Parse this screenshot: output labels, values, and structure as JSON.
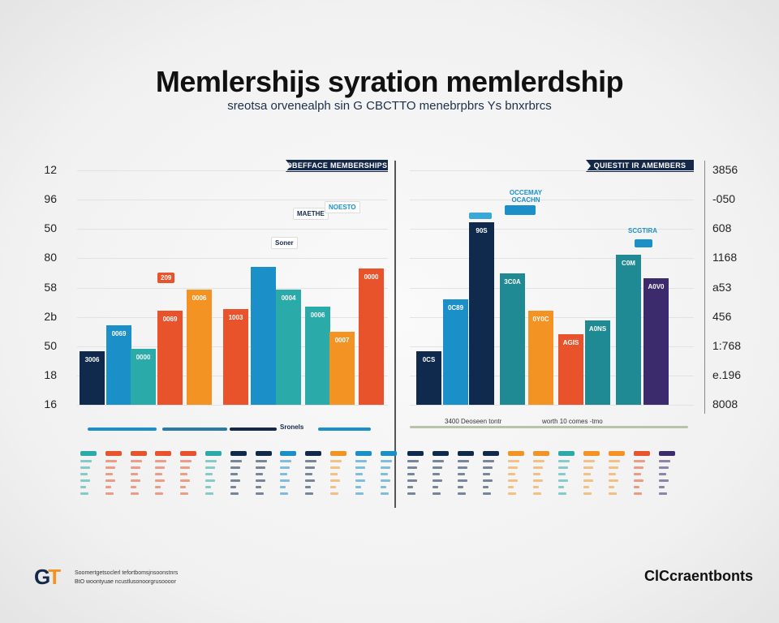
{
  "header": {
    "title": "Memlershijs syration memlerdship",
    "subtitle": "sreotsa orvenealph sin G CBCTTO menebrpbrs Ys bnxrbrcs"
  },
  "colors": {
    "navy": "#0f2a4c",
    "blue": "#1b8fc8",
    "teal": "#2aaaa8",
    "red": "#e8532b",
    "orange": "#f39324",
    "darkteal": "#1f8a93",
    "purple": "#3b2a6c"
  },
  "chart_data": [
    {
      "type": "bar",
      "title": "OBEFFACE MEMBERSHIPS",
      "ylim": [
        0,
        100
      ],
      "yticks": [
        "12",
        "96",
        "50",
        "80",
        "58",
        "2b",
        "50",
        "18",
        "16"
      ],
      "bars": [
        {
          "value": 23,
          "label": "3006",
          "color": "navy"
        },
        {
          "value": 34,
          "label": "0069",
          "color": "blue"
        },
        {
          "value": 24,
          "label": "0000",
          "color": "teal"
        },
        {
          "value": 40,
          "label": "0069",
          "color": "red"
        },
        {
          "value": 49,
          "label": "0006",
          "color": "orange"
        },
        {
          "value": 41,
          "label": "1003",
          "color": "red"
        },
        {
          "value": 59,
          "label": "",
          "color": "blue"
        },
        {
          "value": 49,
          "label": "0004",
          "color": "teal"
        },
        {
          "value": 42,
          "label": "0006",
          "color": "teal"
        },
        {
          "value": 31,
          "label": "0007",
          "color": "orange"
        },
        {
          "value": 58,
          "label": "0000",
          "color": "red"
        }
      ],
      "callouts": [
        "209",
        "Soner",
        "MAETHE",
        "NOESTO"
      ],
      "legend_line_label": "Sronels"
    },
    {
      "type": "bar",
      "title": "QUIESTIT IR AMEMBERS",
      "ylim": [
        0,
        100
      ],
      "yticks": [
        "3856",
        "-050",
        "608",
        "1168",
        "a53",
        "456",
        "1:768",
        "e.196",
        "8008"
      ],
      "bars": [
        {
          "value": 23,
          "label": "0CS",
          "color": "navy"
        },
        {
          "value": 45,
          "label": "0C89",
          "color": "blue"
        },
        {
          "value": 78,
          "label": "90S",
          "color": "navy"
        },
        {
          "value": 56,
          "label": "3C0A",
          "color": "darkteal"
        },
        {
          "value": 40,
          "label": "0Y0C",
          "color": "orange"
        },
        {
          "value": 30,
          "label": "AGIS",
          "color": "red"
        },
        {
          "value": 36,
          "label": "A0NS",
          "color": "darkteal"
        },
        {
          "value": 64,
          "label": "C0M",
          "color": "darkteal"
        },
        {
          "value": 54,
          "label": "A0V0",
          "color": "purple"
        }
      ],
      "callouts": [
        "OCCEMAY OCACHN",
        "SCGTIRA"
      ],
      "legend_line_label": "3400 Deoseen tontr",
      "legend_line_label2": "worth 10 comes -tmo"
    }
  ],
  "legend": {
    "left": [
      "teal",
      "red",
      "red",
      "red",
      "red",
      "teal",
      "navy",
      "navy",
      "blue",
      "navy",
      "orange",
      "blue",
      "blue"
    ],
    "right": [
      "navy",
      "navy",
      "navy",
      "navy",
      "orange",
      "orange",
      "teal",
      "orange",
      "orange",
      "red",
      "purple"
    ]
  },
  "footer": {
    "logo": "GiT",
    "line1": "Soomertgetsoclerl tefortbomsjnsoonstnrs",
    "line2": "BtO woontyuae ncustlusonoorgrusoooor",
    "brand": "ClCcraentbonts"
  }
}
